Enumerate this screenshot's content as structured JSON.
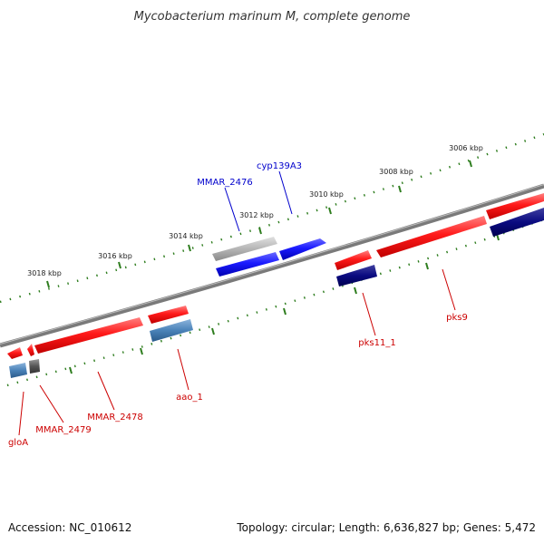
{
  "title": "Mycobacterium marinum M, complete genome",
  "footer": {
    "accession": "Accession: NC_010612",
    "summary": "Topology: circular; Length: 6,636,827 bp; Genes: 5,472"
  },
  "colors": {
    "backbone": "#7a7a7a",
    "tick": "#2e7d1e",
    "forward_label": "#0000cc",
    "reverse_label": "#cc0000",
    "red_feature": "#ff1a1a",
    "blue_feature": "#1a1aff",
    "gray_feature": "#b5b5b5",
    "steelblue_feature": "#4a82b8",
    "navy_feature": "#0a0a80",
    "darkgray_feature": "#555555"
  },
  "scale_labels": [
    {
      "text": "3006 kbp"
    },
    {
      "text": "3008 kbp"
    },
    {
      "text": "3010 kbp"
    },
    {
      "text": "3012 kbp"
    },
    {
      "text": "3014 kbp"
    },
    {
      "text": "3016 kbp"
    },
    {
      "text": "3018 kbp"
    }
  ],
  "gene_labels": [
    {
      "name": "MMAR_2476",
      "strand": "forward"
    },
    {
      "name": "cyp139A3",
      "strand": "forward"
    },
    {
      "name": "pks9",
      "strand": "reverse"
    },
    {
      "name": "pks11_1",
      "strand": "reverse"
    },
    {
      "name": "aao_1",
      "strand": "reverse"
    },
    {
      "name": "MMAR_2478",
      "strand": "reverse"
    },
    {
      "name": "MMAR_2479",
      "strand": "reverse"
    },
    {
      "name": "gloA",
      "strand": "reverse"
    }
  ]
}
